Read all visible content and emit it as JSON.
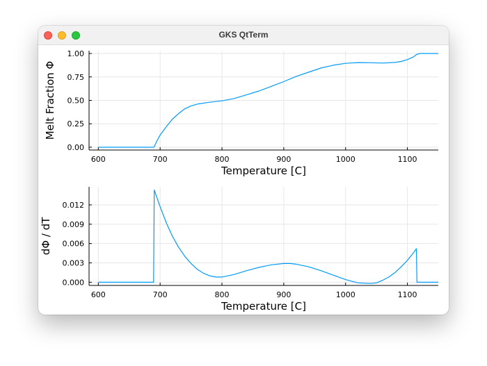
{
  "window": {
    "title": "GKS QtTerm"
  },
  "colors": {
    "series": "#009af9",
    "grid": "#e6e6e6",
    "axis": "#000000"
  },
  "chart_data": [
    {
      "type": "line",
      "xlabel": "Temperature [C]",
      "ylabel": "Melt Fraction Φ",
      "xlim": [
        585,
        1150
      ],
      "ylim": [
        -0.03,
        1.03
      ],
      "xticks": [
        600,
        700,
        800,
        900,
        1000,
        1100
      ],
      "xtick_labels": [
        "600",
        "700",
        "800",
        "900",
        "1000",
        "1100"
      ],
      "yticks": [
        0,
        0.25,
        0.5,
        0.75,
        1.0
      ],
      "ytick_labels": [
        "0.00",
        "0.25",
        "0.50",
        "0.75",
        "1.00"
      ],
      "grid": true,
      "legend": "none",
      "series": [
        {
          "x": [
            600,
            690,
            695,
            700,
            710,
            720,
            730,
            740,
            750,
            760,
            780,
            800,
            820,
            840,
            860,
            880,
            900,
            920,
            940,
            960,
            980,
            1000,
            1020,
            1040,
            1060,
            1080,
            1090,
            1100,
            1110,
            1115,
            1120,
            1150
          ],
          "y": [
            0.0,
            0.0,
            0.07,
            0.13,
            0.22,
            0.3,
            0.36,
            0.41,
            0.44,
            0.46,
            0.48,
            0.495,
            0.52,
            0.56,
            0.6,
            0.65,
            0.7,
            0.755,
            0.8,
            0.845,
            0.875,
            0.895,
            0.903,
            0.902,
            0.898,
            0.905,
            0.915,
            0.935,
            0.965,
            0.99,
            1.0,
            1.0
          ]
        }
      ]
    },
    {
      "type": "line",
      "xlabel": "Temperature [C]",
      "ylabel": "dΦ / dT",
      "xlim": [
        585,
        1150
      ],
      "ylim": [
        -0.0005,
        0.0148
      ],
      "xticks": [
        600,
        700,
        800,
        900,
        1000,
        1100
      ],
      "xtick_labels": [
        "600",
        "700",
        "800",
        "900",
        "1000",
        "1100"
      ],
      "yticks": [
        0,
        0.003,
        0.006,
        0.009,
        0.012
      ],
      "ytick_labels": [
        "0.000",
        "0.003",
        "0.006",
        "0.009",
        "0.012"
      ],
      "grid": true,
      "legend": "none",
      "series": [
        {
          "x": [
            600,
            689.5,
            690.5,
            700,
            710,
            720,
            730,
            740,
            750,
            760,
            770,
            780,
            790,
            800,
            820,
            840,
            860,
            880,
            900,
            910,
            920,
            940,
            960,
            980,
            1000,
            1020,
            1040,
            1050,
            1060,
            1070,
            1080,
            1090,
            1100,
            1110,
            1114.5,
            1115.5,
            1150
          ],
          "y": [
            0.0,
            0.0,
            0.0143,
            0.0117,
            0.0092,
            0.0071,
            0.0054,
            0.004,
            0.0029,
            0.002,
            0.0014,
            0.001,
            0.0008,
            0.0008,
            0.0012,
            0.0018,
            0.0023,
            0.0027,
            0.0029,
            0.0029,
            0.0028,
            0.0024,
            0.0018,
            0.0011,
            0.0004,
            -0.0001,
            -0.0002,
            -0.0001,
            0.0003,
            0.0008,
            0.0015,
            0.0024,
            0.0034,
            0.0046,
            0.0052,
            0.0,
            0.0
          ]
        }
      ]
    }
  ]
}
